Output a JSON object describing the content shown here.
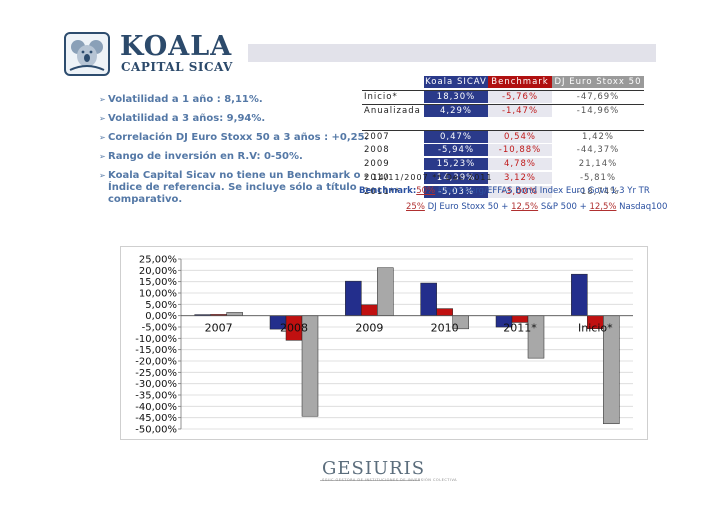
{
  "logo": {
    "name": "KOALA",
    "subtitle": "CAPITAL SICAV"
  },
  "bullets": [
    "Volatilidad a 1 año : 8,11%.",
    "Volatilidad a 3 años: 9,94%.",
    "Correlación DJ Euro Stoxx 50 a 3 años : +0,25.",
    "Rango de inversión en R.V: 0-50%.",
    "Koala Capital Sicav no tiene un Benchmark o",
    "Índice de   referencia. Se incluye sólo a título",
    "comparativo."
  ],
  "table": {
    "headers": [
      "",
      "Koala SICAV",
      "Benchmark",
      "DJ Euro Stoxx 50"
    ],
    "rows": [
      [
        "Inicio*",
        "18,30%",
        "-5,76%",
        "-47,69%"
      ],
      [
        "Anualizada",
        "4,29%",
        "-1,47%",
        "-14,96%"
      ],
      [
        "2007",
        "0,47%",
        "0,54%",
        "1,42%"
      ],
      [
        "2008",
        "-5,94%",
        "-10,88%",
        "-44,37%"
      ],
      [
        "2009",
        "15,23%",
        "4,78%",
        "21,14%"
      ],
      [
        "2010",
        "14,39%",
        "3,12%",
        "-5,81%"
      ],
      [
        "2011**",
        "-5,03%",
        "-3,00%",
        "-18,74%"
      ]
    ],
    "footnote": "* 14/11/2007   ** Dec-2011"
  },
  "benchmark": {
    "label": "Benchmark:",
    "line1_pct": "50%",
    "line1_text": " Bloomberg/EFFAS Bond Index Euro Govt 1-3 Yr TR",
    "line2_p1": "25%",
    "line2_t1": " DJ Euro Stoxx 50 + ",
    "line2_p2": "12,5%",
    "line2_t2": " S&P 500 + ",
    "line2_p3": "12,5%",
    "line2_t3": " Nasdaq100"
  },
  "colors": {
    "koala": "#232e8c",
    "benchmark": "#c01010",
    "stoxx": "#a8a8a8",
    "brand": "#2c4a6b"
  },
  "chart_data": {
    "type": "bar",
    "categories": [
      "2007",
      "2008",
      "2009",
      "2010",
      "2011*",
      "Inicio*"
    ],
    "series": [
      {
        "values": [
          0.47,
          -5.94,
          15.23,
          14.39,
          -5.03,
          18.3
        ]
      },
      {
        "values": [
          0.54,
          -10.88,
          4.78,
          3.12,
          -3.0,
          -5.76
        ]
      },
      {
        "values": [
          1.42,
          -44.37,
          21.14,
          -5.81,
          -18.74,
          -47.69
        ]
      }
    ],
    "ylim": [
      -50,
      25
    ],
    "y_ticks": [
      "25,00%",
      "20,00%",
      "15,00%",
      "10,00%",
      "5,00%",
      "0,00%",
      "-5,00%",
      "-10,00%",
      "-15,00%",
      "-20,00%",
      "-25,00%",
      "-30,00%",
      "-35,00%",
      "-40,00%",
      "-45,00%",
      "-50,00%"
    ],
    "y_tick_values": [
      25,
      20,
      15,
      10,
      5,
      0,
      -5,
      -10,
      -15,
      -20,
      -25,
      -30,
      -35,
      -40,
      -45,
      -50
    ],
    "grid": true,
    "legend": "none"
  },
  "footer_logo": {
    "name": "GESIURIS",
    "tagline": "SGIIC GESTORA DE INSTITUCIONES DE INVERSIÓN COLECTIVA"
  }
}
